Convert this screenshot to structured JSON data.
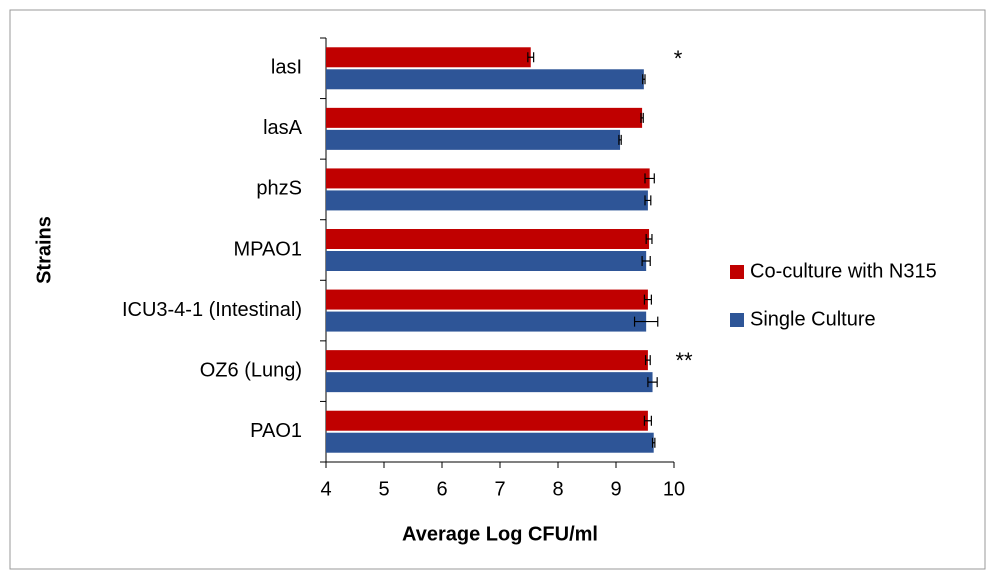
{
  "chart_data": {
    "type": "bar",
    "orientation": "horizontal",
    "x_label": "Average Log CFU/ml",
    "y_label": "Strains",
    "categories": [
      "lasI",
      "lasA",
      "phzS",
      "MPAO1",
      "ICU3-4-1 (Intestinal)",
      "OZ6 (Lung)",
      "PAO1"
    ],
    "series": [
      {
        "name": "Co-culture with N315",
        "color": "#c00000",
        "values": [
          7.53,
          9.45,
          9.58,
          9.57,
          9.55,
          9.55,
          9.55
        ],
        "errors": [
          0.05,
          0.02,
          0.08,
          0.05,
          0.06,
          0.04,
          0.06
        ]
      },
      {
        "name": "Single Culture",
        "color": "#2e5597",
        "values": [
          9.48,
          9.07,
          9.55,
          9.52,
          9.52,
          9.63,
          9.65
        ],
        "errors": [
          0.02,
          0.02,
          0.05,
          0.07,
          0.2,
          0.08,
          0.02
        ]
      }
    ],
    "xlim": [
      4,
      10
    ],
    "xticks": [
      4,
      5,
      6,
      7,
      8,
      9,
      10
    ],
    "annotations": [
      "*",
      "**"
    ],
    "legend": "right"
  }
}
